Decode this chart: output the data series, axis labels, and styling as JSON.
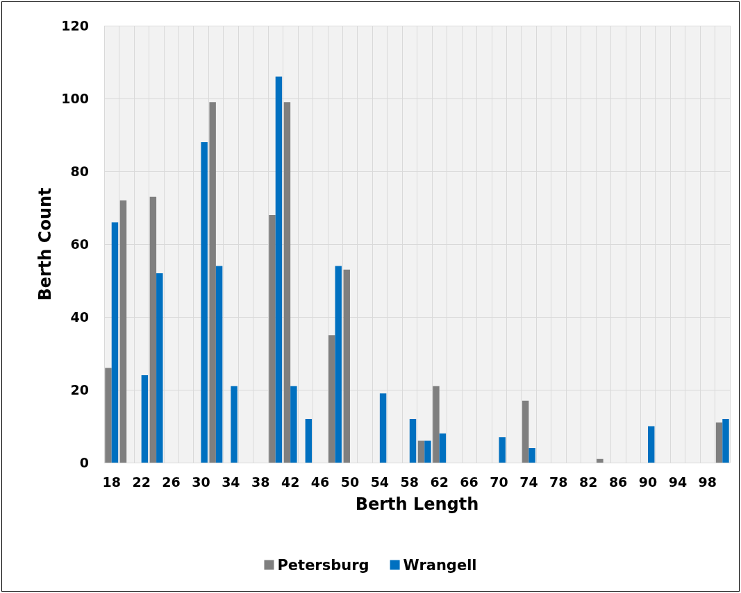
{
  "chart_data": {
    "type": "bar",
    "xlabel": "Berth Length",
    "ylabel": "Berth Count",
    "categories": [
      "18",
      null,
      "22",
      null,
      "26",
      null,
      "30",
      null,
      "34",
      null,
      "38",
      null,
      "42",
      null,
      "46",
      null,
      "50",
      null,
      "54",
      null,
      "58",
      null,
      "62",
      null,
      "66",
      null,
      "70",
      null,
      "74",
      null,
      "78",
      null,
      "82",
      null,
      "86",
      null,
      "90",
      null,
      "94",
      null,
      "98",
      null
    ],
    "series": [
      {
        "name": "Petersburg",
        "color": "#7f7f7f",
        "values": [
          26,
          72,
          0,
          73,
          0,
          0,
          0,
          99,
          0,
          0,
          0,
          68,
          99,
          0,
          0,
          35,
          53,
          0,
          0,
          0,
          0,
          6,
          21,
          0,
          0,
          0,
          0,
          0,
          17,
          0,
          0,
          0,
          0,
          1,
          0,
          0,
          0,
          0,
          0,
          0,
          0,
          11
        ]
      },
      {
        "name": "Wrangell",
        "color": "#0070c0",
        "values": [
          66,
          0,
          24,
          52,
          0,
          0,
          88,
          54,
          21,
          0,
          0,
          106,
          21,
          12,
          0,
          54,
          0,
          0,
          19,
          0,
          12,
          6,
          8,
          0,
          0,
          0,
          7,
          0,
          4,
          0,
          0,
          0,
          0,
          0,
          0,
          0,
          10,
          0,
          0,
          0,
          0,
          12
        ]
      }
    ],
    "ylim": [
      0,
      120
    ],
    "yticks": [
      0,
      20,
      40,
      60,
      80,
      100,
      120
    ],
    "grid": true,
    "legend": "bottom"
  }
}
